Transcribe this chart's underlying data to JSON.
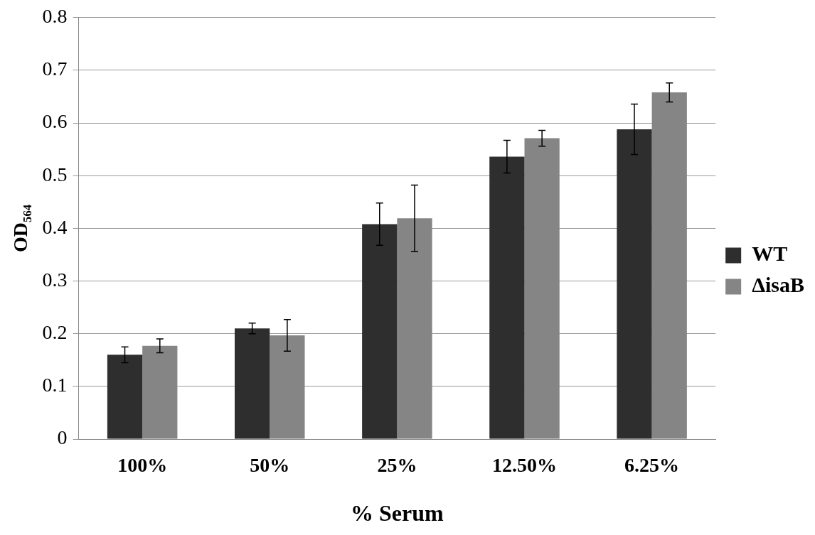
{
  "chart_data": {
    "type": "bar",
    "xlabel": "% Serum",
    "ylabel": "OD₅₆₄",
    "categories": [
      "100%",
      "50%",
      "25%",
      "12.50%",
      "6.25%"
    ],
    "series": [
      {
        "name": "WT",
        "color": "#2e2e2e",
        "values": [
          0.16,
          0.21,
          0.408,
          0.536,
          0.588
        ],
        "errors": [
          0.015,
          0.01,
          0.04,
          0.031,
          0.048
        ]
      },
      {
        "name": "ΔisaB",
        "color": "#858585",
        "values": [
          0.177,
          0.197,
          0.419,
          0.571,
          0.658
        ],
        "errors": [
          0.013,
          0.03,
          0.063,
          0.015,
          0.018
        ]
      }
    ],
    "ylim": [
      0,
      0.8
    ],
    "yticks": [
      0,
      0.1,
      0.2,
      0.3,
      0.4,
      0.5,
      0.6,
      0.7,
      0.8
    ],
    "grid": "y",
    "legend": "right"
  }
}
